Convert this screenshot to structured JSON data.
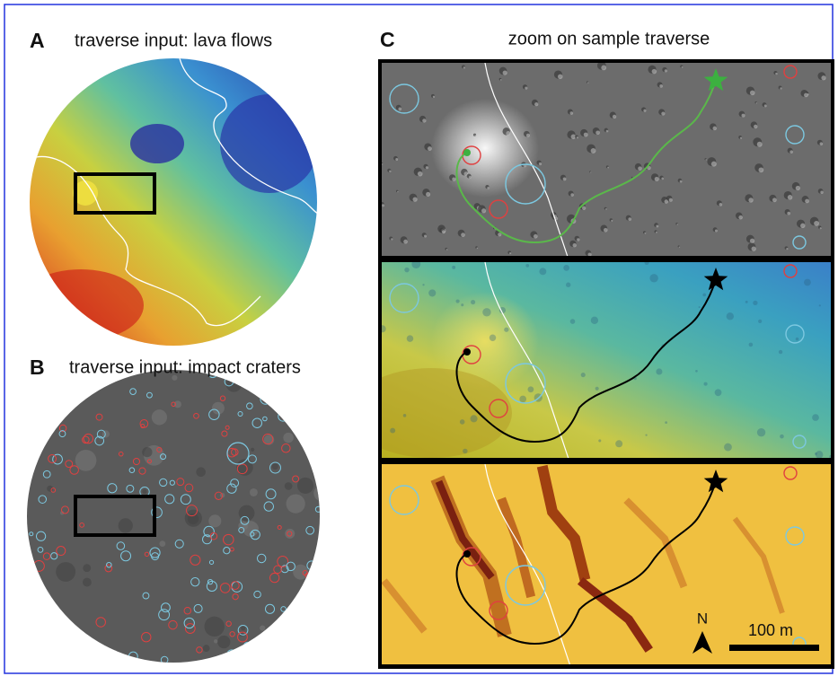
{
  "panels": [
    {
      "letter": "A",
      "title": "traverse input: lava flows"
    },
    {
      "letter": "B",
      "title": "traverse input: impact craters"
    },
    {
      "letter": "C",
      "title": "zoom on sample traverse"
    }
  ],
  "compass": "N",
  "scale_bar": "100 m"
}
